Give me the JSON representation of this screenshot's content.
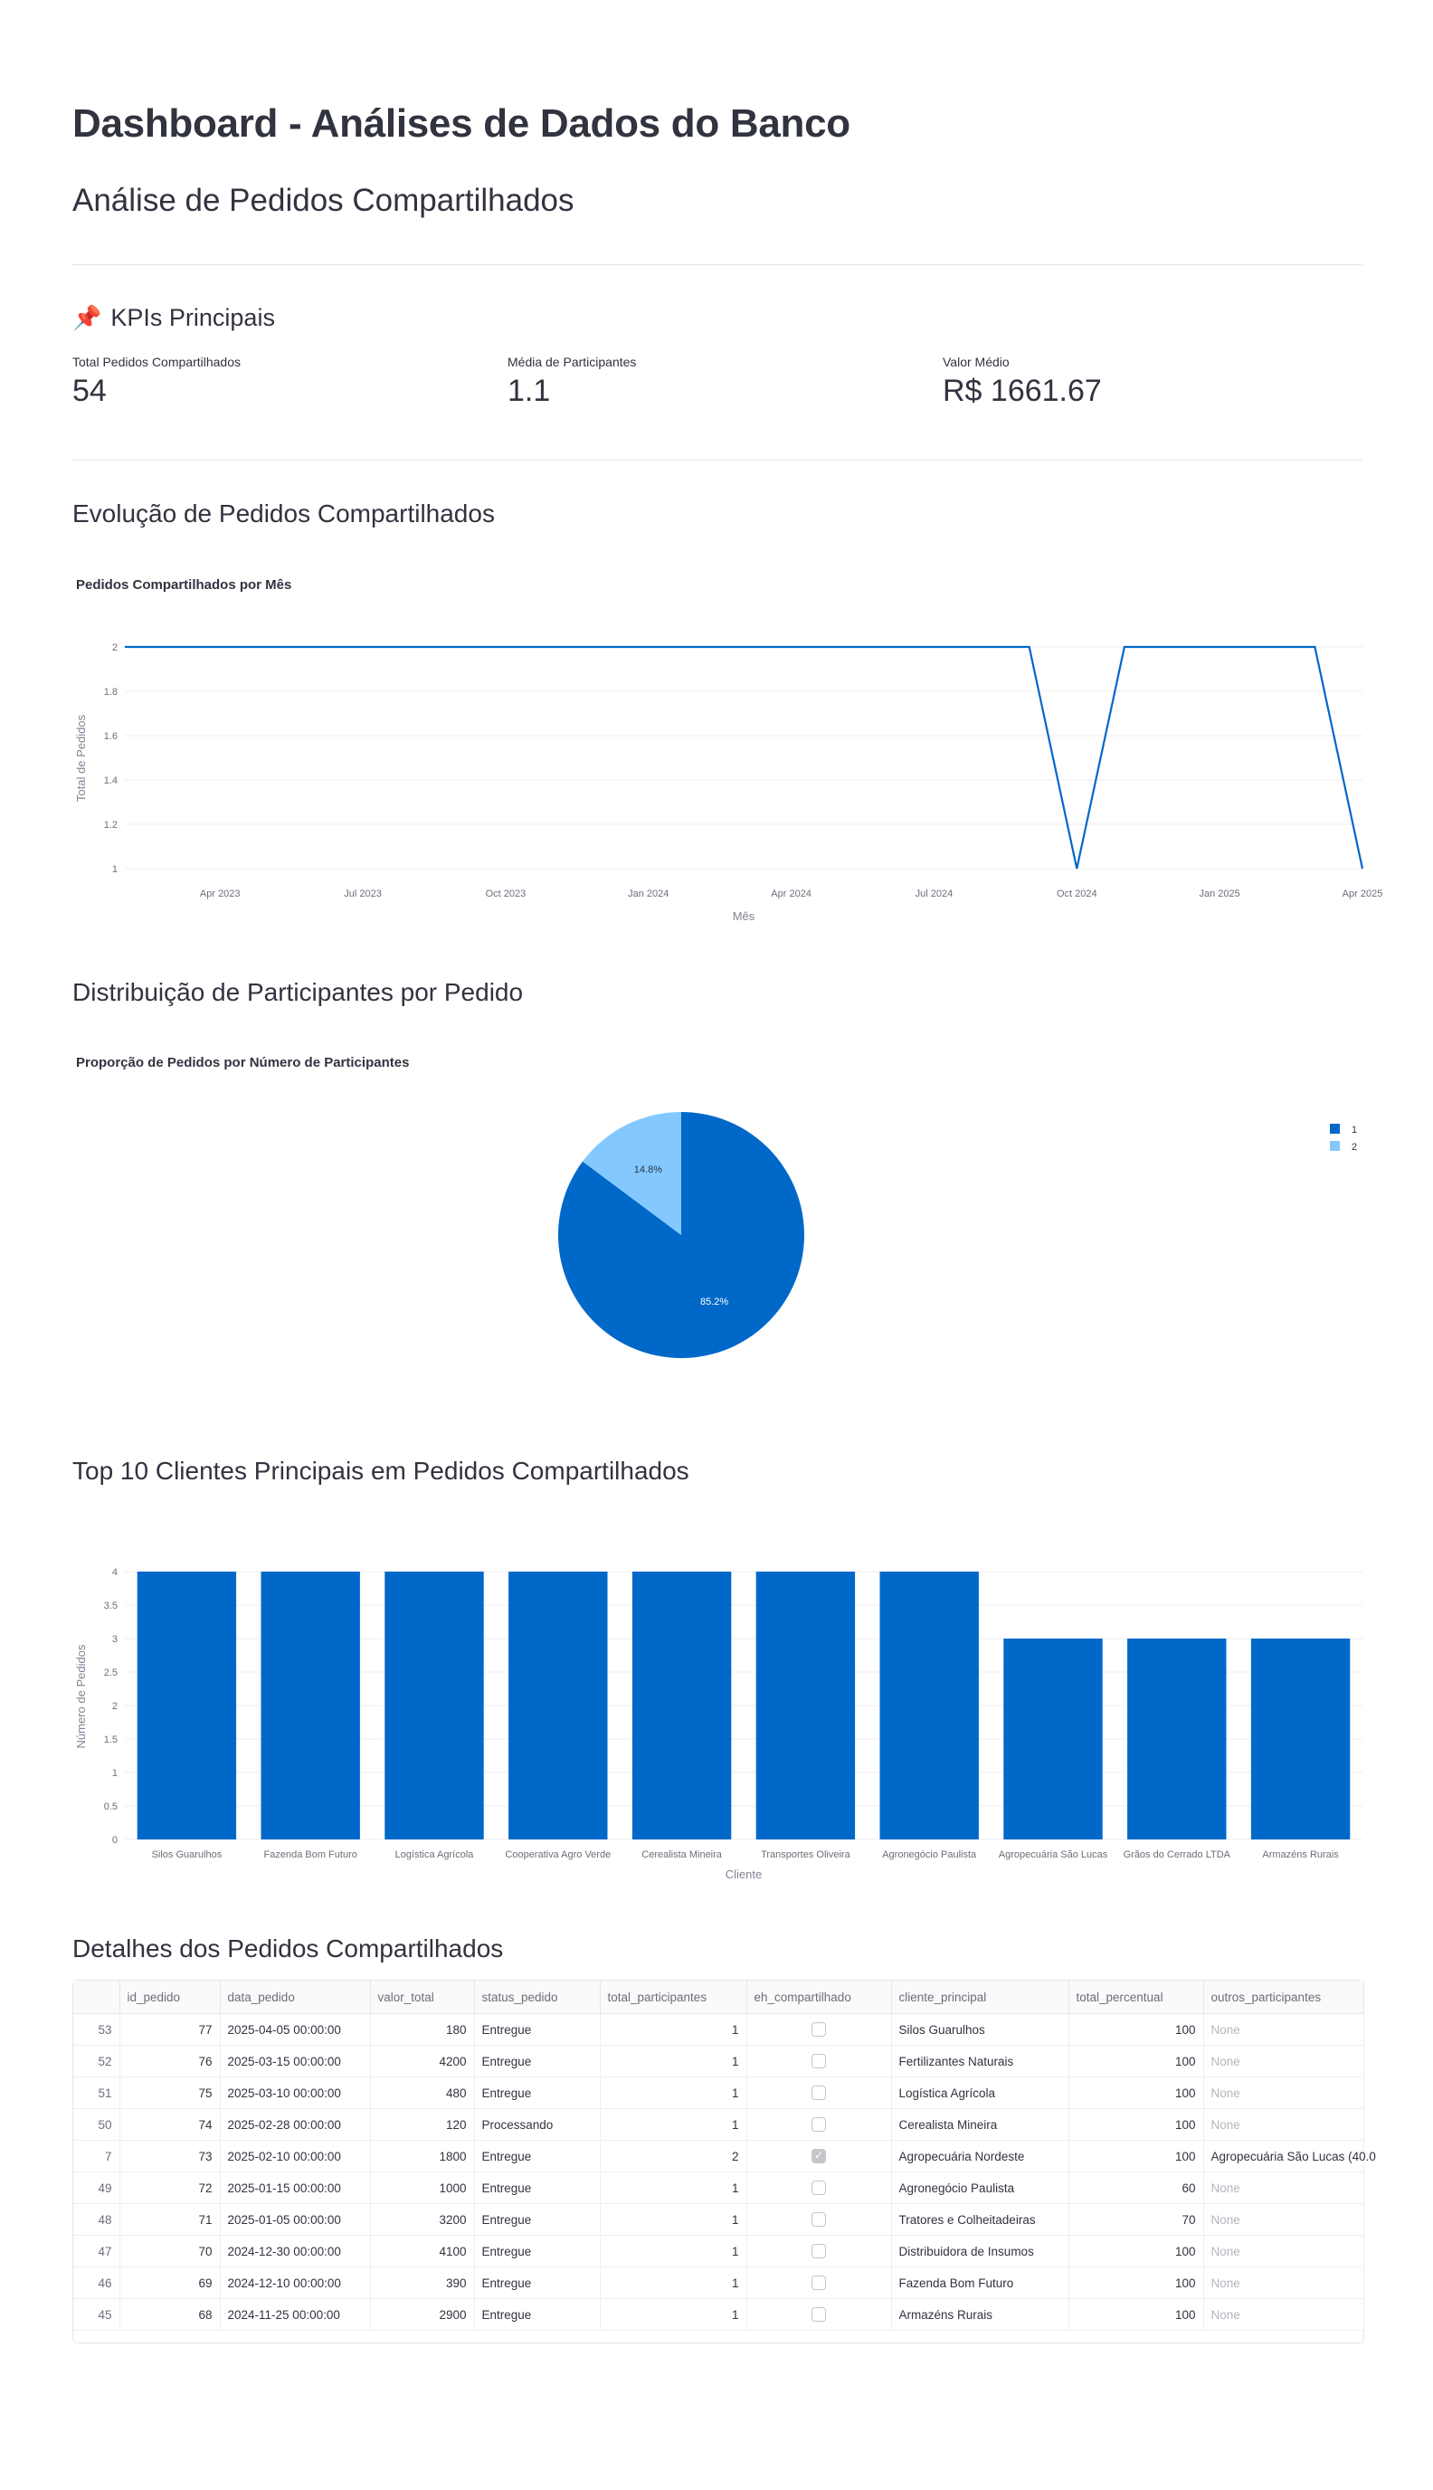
{
  "header": {
    "title": "Dashboard - Análises de Dados do Banco",
    "subtitle": "Análise de Pedidos Compartilhados"
  },
  "kpis": {
    "section_icon": "pushpin-icon",
    "section_emoji": "📌",
    "section_title": "KPIs Principais",
    "items": [
      {
        "label": "Total Pedidos Compartilhados",
        "value": "54"
      },
      {
        "label": "Média de Participantes",
        "value": "1.1"
      },
      {
        "label": "Valor Médio",
        "value": "R$ 1661.67"
      }
    ]
  },
  "sections": {
    "evolution": "Evolução de Pedidos Compartilhados",
    "distribution": "Distribuição de Participantes por Pedido",
    "top_clients": "Top 10 Clientes Principais em Pedidos Compartilhados",
    "details": "Detalhes dos Pedidos Compartilhados"
  },
  "colors": {
    "primary_blue": "#0068c9",
    "light_blue": "#83c9ff",
    "text": "#31333f"
  },
  "chart_data": [
    {
      "type": "line",
      "title": "Pedidos Compartilhados por Mês",
      "xlabel": "Mês",
      "ylabel": "Total de Pedidos",
      "ylim": [
        1,
        2
      ],
      "yticks": [
        "1",
        "1.2",
        "1.4",
        "1.6",
        "1.8",
        "2"
      ],
      "xticks": [
        "Apr 2023",
        "Jul 2023",
        "Oct 2023",
        "Jan 2024",
        "Apr 2024",
        "Jul 2024",
        "Oct 2024",
        "Jan 2025",
        "Apr 2025"
      ],
      "grid": true,
      "series": [
        {
          "x": [
            "2023-02",
            "2023-03",
            "2023-04",
            "2023-05",
            "2023-06",
            "2023-07",
            "2023-08",
            "2023-09",
            "2023-10",
            "2023-11",
            "2023-12",
            "2024-01",
            "2024-02",
            "2024-03",
            "2024-04",
            "2024-05",
            "2024-06",
            "2024-07",
            "2024-08",
            "2024-09",
            "2024-10",
            "2024-11",
            "2024-12",
            "2025-01",
            "2025-02",
            "2025-03",
            "2025-04"
          ],
          "y": [
            2,
            2,
            2,
            2,
            2,
            2,
            2,
            2,
            2,
            2,
            2,
            2,
            2,
            2,
            2,
            2,
            2,
            2,
            2,
            2,
            1,
            2,
            2,
            2,
            2,
            2,
            1
          ]
        }
      ]
    },
    {
      "type": "pie",
      "title": "Proporção de Pedidos por Número de Participantes",
      "legend_position": "top-right",
      "slices": [
        {
          "label": "1",
          "value": 85.2,
          "text": "85.2%"
        },
        {
          "label": "2",
          "value": 14.8,
          "text": "14.8%"
        }
      ]
    },
    {
      "type": "bar",
      "xlabel": "Cliente",
      "ylabel": "Número de Pedidos",
      "ylim": [
        0,
        4
      ],
      "yticks": [
        "0",
        "0.5",
        "1",
        "1.5",
        "2",
        "2.5",
        "3",
        "3.5",
        "4"
      ],
      "grid": true,
      "categories": [
        "Silos Guarulhos",
        "Fazenda Bom Futuro",
        "Logística Agrícola",
        "Cooperativa Agro Verde",
        "Cerealista Mineira",
        "Transportes Oliveira",
        "Agronegócio Paulista",
        "Agropecuária São Lucas",
        "Grãos do Cerrado LTDA",
        "Armazéns Rurais"
      ],
      "values": [
        4,
        4,
        4,
        4,
        4,
        4,
        4,
        3,
        3,
        3
      ]
    }
  ],
  "table": {
    "columns": [
      "",
      "id_pedido",
      "data_pedido",
      "valor_total",
      "status_pedido",
      "total_participantes",
      "eh_compartilhado",
      "cliente_principal",
      "total_percentual",
      "outros_participantes"
    ],
    "rows": [
      {
        "idx": "53",
        "id_pedido": "77",
        "data_pedido": "2025-04-05 00:00:00",
        "valor_total": "180",
        "status_pedido": "Entregue",
        "total_participantes": "1",
        "eh_compartilhado": false,
        "cliente_principal": "Silos Guarulhos",
        "total_percentual": "100",
        "outros_participantes": "None"
      },
      {
        "idx": "52",
        "id_pedido": "76",
        "data_pedido": "2025-03-15 00:00:00",
        "valor_total": "4200",
        "status_pedido": "Entregue",
        "total_participantes": "1",
        "eh_compartilhado": false,
        "cliente_principal": "Fertilizantes Naturais",
        "total_percentual": "100",
        "outros_participantes": "None"
      },
      {
        "idx": "51",
        "id_pedido": "75",
        "data_pedido": "2025-03-10 00:00:00",
        "valor_total": "480",
        "status_pedido": "Entregue",
        "total_participantes": "1",
        "eh_compartilhado": false,
        "cliente_principal": "Logística Agrícola",
        "total_percentual": "100",
        "outros_participantes": "None"
      },
      {
        "idx": "50",
        "id_pedido": "74",
        "data_pedido": "2025-02-28 00:00:00",
        "valor_total": "120",
        "status_pedido": "Processando",
        "total_participantes": "1",
        "eh_compartilhado": false,
        "cliente_principal": "Cerealista Mineira",
        "total_percentual": "100",
        "outros_participantes": "None"
      },
      {
        "idx": "7",
        "id_pedido": "73",
        "data_pedido": "2025-02-10 00:00:00",
        "valor_total": "1800",
        "status_pedido": "Entregue",
        "total_participantes": "2",
        "eh_compartilhado": true,
        "cliente_principal": "Agropecuária Nordeste",
        "total_percentual": "100",
        "outros_participantes": "Agropecuária São Lucas (40.0"
      },
      {
        "idx": "49",
        "id_pedido": "72",
        "data_pedido": "2025-01-15 00:00:00",
        "valor_total": "1000",
        "status_pedido": "Entregue",
        "total_participantes": "1",
        "eh_compartilhado": false,
        "cliente_principal": "Agronegócio Paulista",
        "total_percentual": "60",
        "outros_participantes": "None"
      },
      {
        "idx": "48",
        "id_pedido": "71",
        "data_pedido": "2025-01-05 00:00:00",
        "valor_total": "3200",
        "status_pedido": "Entregue",
        "total_participantes": "1",
        "eh_compartilhado": false,
        "cliente_principal": "Tratores e Colheitadeiras",
        "total_percentual": "70",
        "outros_participantes": "None"
      },
      {
        "idx": "47",
        "id_pedido": "70",
        "data_pedido": "2024-12-30 00:00:00",
        "valor_total": "4100",
        "status_pedido": "Entregue",
        "total_participantes": "1",
        "eh_compartilhado": false,
        "cliente_principal": "Distribuidora de Insumos",
        "total_percentual": "100",
        "outros_participantes": "None"
      },
      {
        "idx": "46",
        "id_pedido": "69",
        "data_pedido": "2024-12-10 00:00:00",
        "valor_total": "390",
        "status_pedido": "Entregue",
        "total_participantes": "1",
        "eh_compartilhado": false,
        "cliente_principal": "Fazenda Bom Futuro",
        "total_percentual": "100",
        "outros_participantes": "None"
      },
      {
        "idx": "45",
        "id_pedido": "68",
        "data_pedido": "2024-11-25 00:00:00",
        "valor_total": "2900",
        "status_pedido": "Entregue",
        "total_participantes": "1",
        "eh_compartilhado": false,
        "cliente_principal": "Armazéns Rurais",
        "total_percentual": "100",
        "outros_participantes": "None"
      }
    ]
  }
}
